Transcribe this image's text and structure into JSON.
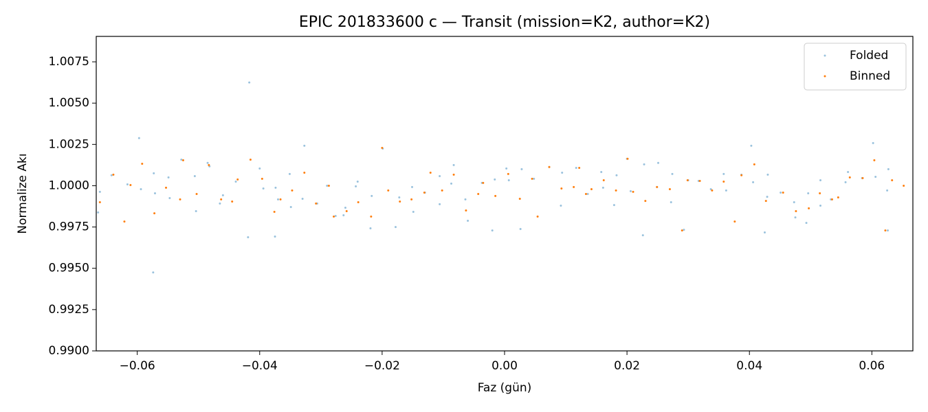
{
  "chart_data": {
    "type": "scatter",
    "title": "EPIC 201833600 c — Transit (mission=K2, author=K2)",
    "x_label": "Faz (gün)",
    "y_label": "Normalize Akı",
    "xlim": [
      -0.0667,
      0.0667
    ],
    "ylim": [
      0.99,
      1.00904
    ],
    "xticks": [
      {
        "value": -0.06,
        "label": "−0.06"
      },
      {
        "value": -0.04,
        "label": "−0.04"
      },
      {
        "value": -0.02,
        "label": "−0.02"
      },
      {
        "value": 0,
        "label": "0.00"
      },
      0.02,
      0.04,
      0.06
    ],
    "yticks": [
      {
        "value": 0.99,
        "label": "0.9900"
      },
      0.9925,
      {
        "value": 0.995,
        "label": "0.9950"
      },
      0.9975,
      {
        "value": 1,
        "label": "1.0000"
      },
      1.0025,
      {
        "value": 1.005,
        "label": "1.0050"
      },
      1.0075
    ],
    "legend": "upper right",
    "series": [
      {
        "name": "Folded",
        "color": "#1f77b4",
        "alpha": 0.45,
        "x": [
          -0.0664,
          -0.0661,
          -0.0642,
          -0.0616,
          -0.0597,
          -0.0594,
          -0.0574,
          -0.0573,
          -0.0571,
          -0.0549,
          -0.0547,
          -0.0528,
          -0.0506,
          -0.0504,
          -0.0485,
          -0.0482,
          -0.0465,
          -0.046,
          -0.0439,
          -0.0417,
          -0.0419,
          -0.04,
          -0.0394,
          -0.0375,
          -0.0374,
          -0.037,
          -0.0351,
          -0.0349,
          -0.033,
          -0.0327,
          -0.0306,
          -0.029,
          -0.0276,
          -0.0263,
          -0.026,
          -0.0243,
          -0.024,
          -0.0219,
          -0.0217,
          -0.0199,
          -0.0178,
          -0.0172,
          -0.0151,
          -0.0149,
          -0.013,
          -0.0106,
          -0.0106,
          -0.0087,
          -0.0083,
          -0.0064,
          -0.006,
          -0.0037,
          -0.002,
          -0.0016,
          0.0003,
          0.0007,
          0.0026,
          0.0028,
          0.0048,
          0.0073,
          0.0092,
          0.0094,
          0.0117,
          0.0136,
          0.0158,
          0.0161,
          0.0179,
          0.0183,
          0.02,
          0.0206,
          0.0226,
          0.0228,
          0.0249,
          0.0251,
          0.0272,
          0.0274,
          0.0293,
          0.03,
          0.0317,
          0.0337,
          0.0358,
          0.0362,
          0.0387,
          0.0403,
          0.0406,
          0.0425,
          0.0429,
          0.043,
          0.0451,
          0.0473,
          0.0475,
          0.0493,
          0.0496,
          0.0516,
          0.0516,
          0.0533,
          0.0557,
          0.0561,
          0.0584,
          0.0602,
          0.0606,
          0.0625,
          0.0627,
          0.0626
        ],
        "values": [
          0.99838,
          0.99963,
          1.00063,
          1.00008,
          1.00288,
          0.99979,
          0.99475,
          1.00075,
          0.99954,
          1.0005,
          0.99925,
          1.00158,
          1.00058,
          0.99846,
          1.00138,
          1.00117,
          0.99892,
          0.99942,
          1.00025,
          1.00625,
          0.99688,
          1.00104,
          0.99983,
          0.99692,
          0.99988,
          0.99917,
          1.00071,
          0.99871,
          0.99921,
          1.00242,
          0.99892,
          1.0,
          0.99817,
          0.99821,
          0.99867,
          0.99996,
          1.00025,
          0.99742,
          0.99938,
          1.00225,
          0.9975,
          0.99929,
          0.99992,
          0.99842,
          0.99958,
          1.00058,
          0.99888,
          1.00013,
          1.00125,
          0.99917,
          0.99788,
          1.00017,
          0.99729,
          1.00038,
          1.00104,
          1.00033,
          0.99738,
          1.001,
          1.00042,
          1.00113,
          0.99879,
          1.00079,
          1.00108,
          0.9995,
          1.00083,
          0.99988,
          0.99883,
          1.00063,
          1.00163,
          0.99967,
          0.997,
          1.00129,
          0.99992,
          1.00138,
          0.999,
          1.00071,
          0.99733,
          1.00033,
          1.00029,
          0.99979,
          1.00071,
          0.99971,
          1.00067,
          1.00242,
          1.00021,
          0.99717,
          0.99933,
          1.00067,
          0.99958,
          0.999,
          0.99808,
          0.99775,
          0.99954,
          1.00033,
          0.99879,
          0.99917,
          1.00021,
          1.00083,
          1.00046,
          1.00258,
          1.00054,
          0.99971,
          1.001,
          0.99729
        ]
      },
      {
        "name": "Binned",
        "color": "#ff7f0e",
        "alpha": 1,
        "x": [
          -0.0661,
          -0.0639,
          -0.0621,
          -0.0611,
          -0.0592,
          -0.0572,
          -0.0553,
          -0.053,
          -0.0525,
          -0.0503,
          -0.0483,
          -0.0463,
          -0.0445,
          -0.0436,
          -0.0415,
          -0.0396,
          -0.0376,
          -0.0366,
          -0.0347,
          -0.0327,
          -0.0308,
          -0.0287,
          -0.0279,
          -0.0258,
          -0.0239,
          -0.0218,
          -0.02,
          -0.019,
          -0.0171,
          -0.0152,
          -0.0131,
          -0.0121,
          -0.0102,
          -0.0083,
          -0.0063,
          -0.0043,
          -0.0035,
          -0.0015,
          0.0006,
          0.0025,
          0.0045,
          0.0054,
          0.0073,
          0.0093,
          0.0113,
          0.0122,
          0.0133,
          0.0142,
          0.0162,
          0.0182,
          0.0201,
          0.021,
          0.023,
          0.0249,
          0.027,
          0.029,
          0.0299,
          0.0319,
          0.0339,
          0.0358,
          0.0376,
          0.0387,
          0.0408,
          0.0427,
          0.0455,
          0.0476,
          0.0497,
          0.0515,
          0.0535,
          0.0545,
          0.0564,
          0.0585,
          0.0604,
          0.0622,
          0.0633,
          0.0652
        ],
        "values": [
          0.999,
          1.00067,
          0.99783,
          1.00004,
          1.00133,
          0.99833,
          0.99988,
          0.99917,
          1.00154,
          0.9995,
          1.00125,
          0.99917,
          0.99904,
          1.00038,
          1.00158,
          1.00042,
          0.99842,
          0.99917,
          0.99971,
          1.00079,
          0.99892,
          1.0,
          0.99813,
          0.99846,
          0.999,
          0.99813,
          1.00229,
          0.99971,
          0.99904,
          0.99917,
          0.99958,
          1.00079,
          0.99971,
          1.00067,
          0.9985,
          0.9995,
          1.00017,
          0.99938,
          1.00071,
          0.99921,
          1.00042,
          0.99813,
          1.00113,
          0.99983,
          0.99992,
          1.00108,
          0.9995,
          0.99979,
          1.00033,
          0.99971,
          1.00163,
          0.99963,
          0.99908,
          0.99992,
          0.99979,
          0.99729,
          1.00033,
          1.00029,
          0.99971,
          1.00025,
          0.99783,
          1.00063,
          1.00129,
          0.99908,
          0.99958,
          0.99846,
          0.99863,
          0.99954,
          0.99917,
          0.99929,
          1.0005,
          1.00046,
          1.00154,
          0.99729,
          1.00033,
          1.0
        ]
      }
    ]
  }
}
